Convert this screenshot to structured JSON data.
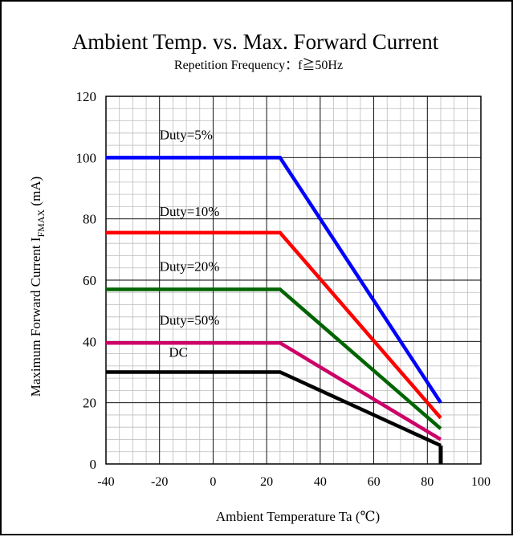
{
  "chart_data": {
    "type": "line",
    "title": "Ambient Temp. vs. Max. Forward Current",
    "subtitle": "Repetition Frequency：f≧50Hz",
    "xlabel": "Ambient Temperature Ta (℃)",
    "ylabel": {
      "prefix": "Maximum Forward Current I",
      "sub": "FMAX",
      "suffix": " (mA)"
    },
    "xlim": [
      -40,
      100
    ],
    "ylim": [
      0,
      120
    ],
    "x_ticks": [
      -40,
      -20,
      0,
      20,
      40,
      60,
      80,
      100
    ],
    "y_ticks": [
      0,
      20,
      40,
      60,
      80,
      100,
      120
    ],
    "grid": true,
    "series": [
      {
        "name": "Duty=5%",
        "color": "#0000ff",
        "points": [
          [
            -40,
            100
          ],
          [
            25,
            100
          ],
          [
            85,
            20
          ]
        ]
      },
      {
        "name": "Duty=10%",
        "color": "#ff0000",
        "points": [
          [
            -40,
            75.5
          ],
          [
            25,
            75.5
          ],
          [
            85,
            15
          ]
        ]
      },
      {
        "name": "Duty=20%",
        "color": "#006400",
        "points": [
          [
            -40,
            57
          ],
          [
            25,
            57
          ],
          [
            85,
            11.5
          ]
        ]
      },
      {
        "name": "Duty=50%",
        "color": "#cc0066",
        "points": [
          [
            -40,
            39.5
          ],
          [
            25,
            39.5
          ],
          [
            85,
            8
          ]
        ]
      },
      {
        "name": "DC",
        "color": "#000000",
        "points": [
          [
            -40,
            30
          ],
          [
            25,
            30
          ],
          [
            85,
            6
          ]
        ]
      }
    ],
    "annotations": [
      {
        "text": "Duty=5%",
        "x": -20,
        "y": 106
      },
      {
        "text": "Duty=10%",
        "x": -20,
        "y": 81
      },
      {
        "text": "Duty=20%",
        "x": -20,
        "y": 63
      },
      {
        "text": "Duty=50%",
        "x": -20,
        "y": 45.5
      },
      {
        "text": "DC",
        "x": -16.5,
        "y": 35
      }
    ],
    "cutoff_x": 85
  }
}
